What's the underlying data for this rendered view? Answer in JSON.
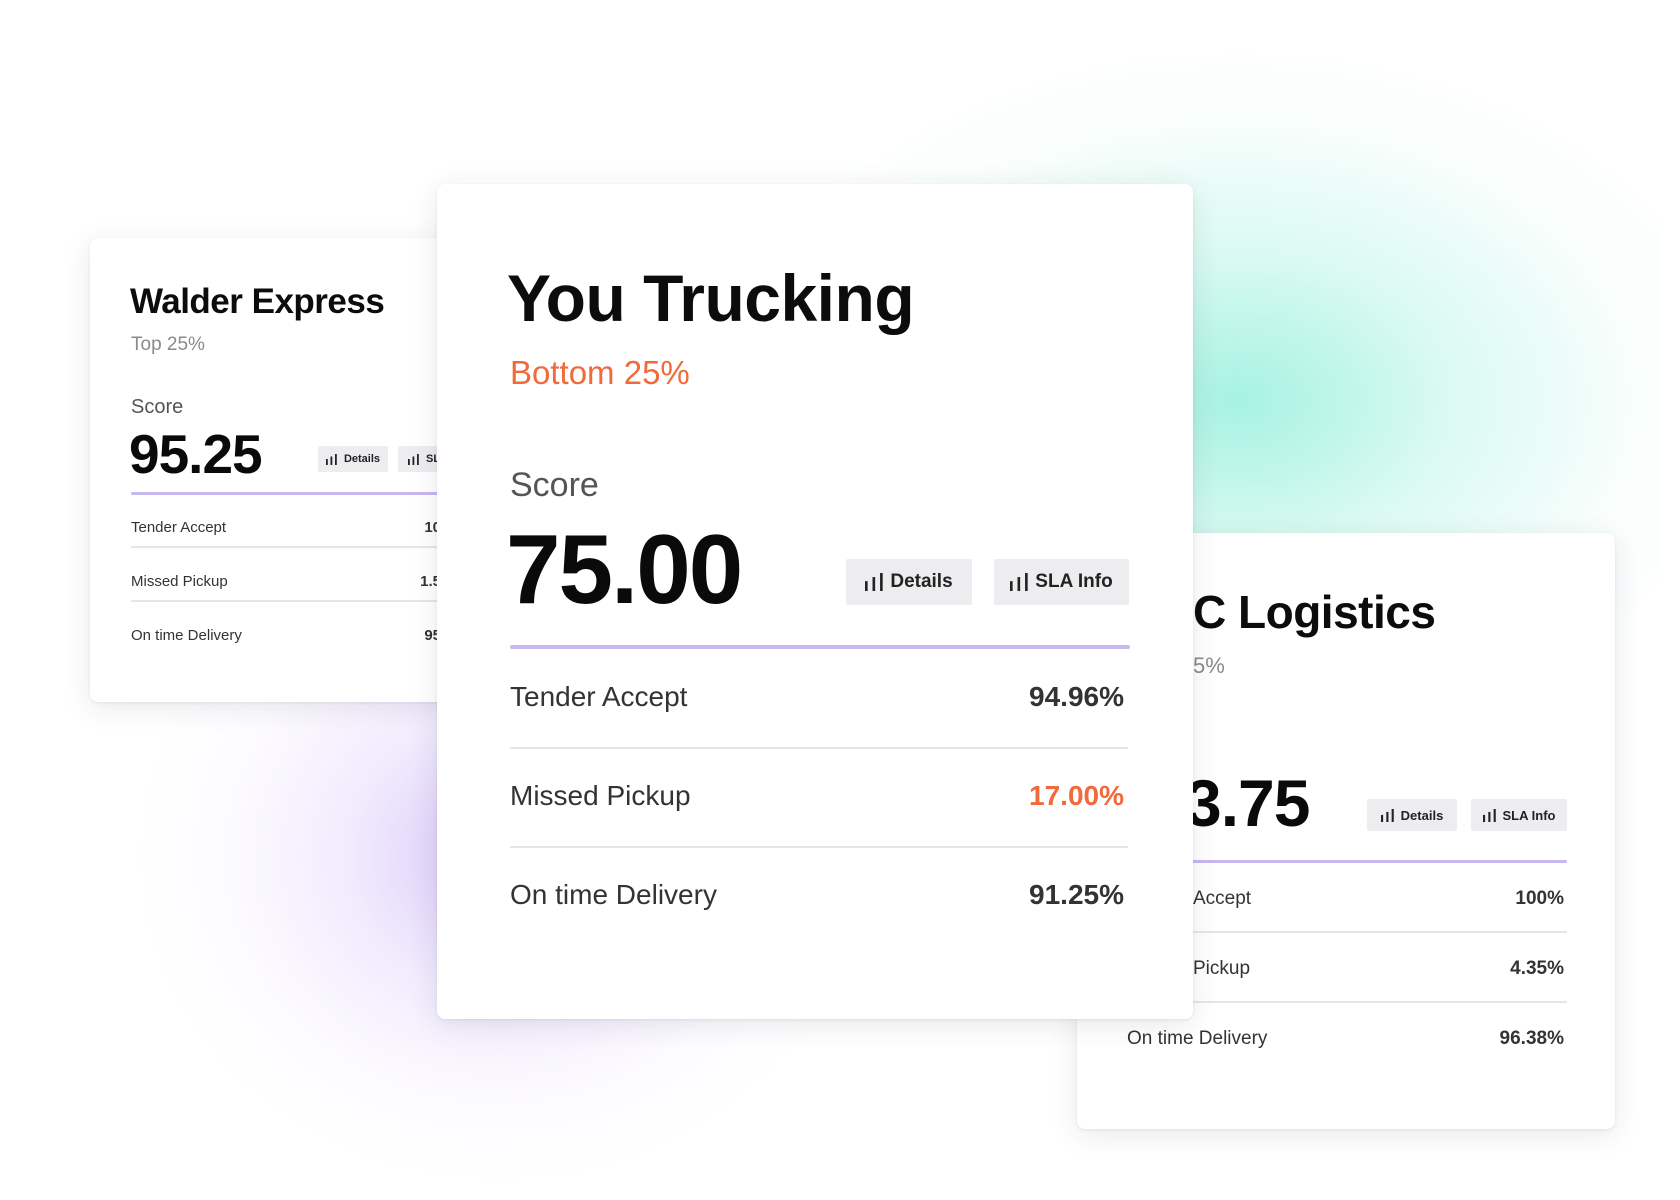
{
  "colors": {
    "accent_purple": "#c8b8f0",
    "warning_orange": "#f06a3c",
    "muted_gray": "#8a8a8a"
  },
  "cards": [
    {
      "name": "Walder Express",
      "tier": "Top 25%",
      "score_label": "Score",
      "score": "95.25",
      "details_label": "Details",
      "sla_label": "SLA Info",
      "metrics": [
        {
          "label": "Tender Accept",
          "value": "10"
        },
        {
          "label": "Missed Pickup",
          "value": "1.5"
        },
        {
          "label": "On time Delivery",
          "value": "95"
        }
      ]
    },
    {
      "name": "You Trucking",
      "tier": "Bottom 25%",
      "score_label": "Score",
      "score": "75.00",
      "details_label": "Details",
      "sla_label": "SLA Info",
      "metrics": [
        {
          "label": "Tender Accept",
          "value": "94.96%"
        },
        {
          "label": "Missed Pickup",
          "value": "17.00%"
        },
        {
          "label": "On time Delivery",
          "value": "91.25%"
        }
      ]
    },
    {
      "name": "C Logistics",
      "tier": "5%",
      "score_label": "",
      "score": "3.75",
      "details_label": "Details",
      "sla_label": "SLA Info",
      "metrics": [
        {
          "label": "Accept",
          "value": "100%"
        },
        {
          "label": "Pickup",
          "value": "4.35%"
        },
        {
          "label": "On time Delivery",
          "value": "96.38%"
        }
      ]
    }
  ]
}
